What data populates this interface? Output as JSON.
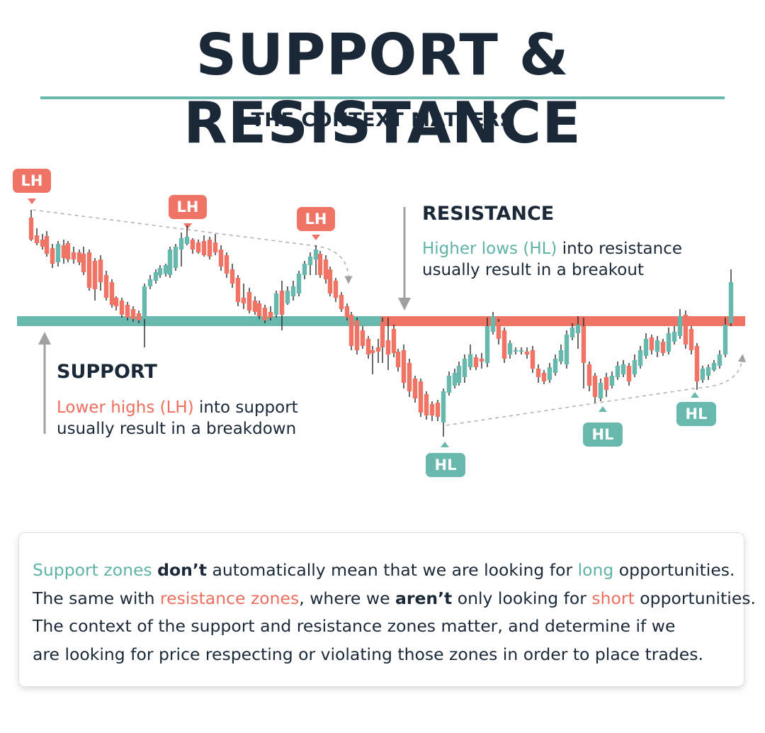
{
  "title": "SUPPORT & RESISTANCE",
  "subtitle": "THE CONTEXT MATTERS",
  "labels": {
    "lh": "LH",
    "hl": "HL"
  },
  "resistance_note": {
    "heading": "RESISTANCE",
    "highlight": "Higher lows (HL)",
    "line1_rest": " into resistance",
    "line2": "usually result in a breakout"
  },
  "support_note": {
    "heading": "SUPPORT",
    "highlight": "Lower highs (LH)",
    "line1_rest": " into support",
    "line2": "usually result in a breakdown"
  },
  "summary": {
    "l1": [
      "Support zones",
      " ",
      "don’t",
      " automatically mean that we are looking for ",
      "long",
      " opportunities."
    ],
    "l2": [
      "The same with ",
      "resistance zones",
      ", where we ",
      "aren’t",
      " only looking for ",
      "short",
      " opportunities."
    ],
    "l3": "The context of the support and resistance zones matter, and determine if we",
    "l4": "are looking for price respecting or violating those zones in order to place trades."
  },
  "colors": {
    "teal": "#68b8ad",
    "red": "#ef7465",
    "dark": "#1b2838",
    "arrow_gray": "#9a9a9a"
  },
  "chart_data": {
    "type": "candlestick",
    "price_path": [
      {
        "phase": "first lower high",
        "ohlc": [
          [
            5,
            45,
            5,
            42
          ],
          [
            42,
            50,
            25,
            25
          ],
          [
            26,
            28,
            10,
            12
          ],
          [
            14,
            48,
            12,
            46
          ]
        ]
      },
      {
        "phase": "second lower high"
      },
      {
        "phase": "third lower high"
      },
      {
        "phase": "breakdown below support"
      },
      {
        "phase": "first higher low"
      },
      {
        "phase": "second higher low"
      },
      {
        "phase": "third higher low"
      },
      {
        "phase": "breakout above resistance"
      }
    ],
    "zones": [
      {
        "name": "support",
        "color": "#68b8ad"
      },
      {
        "name": "resistance",
        "color": "#ef7465"
      }
    ]
  }
}
